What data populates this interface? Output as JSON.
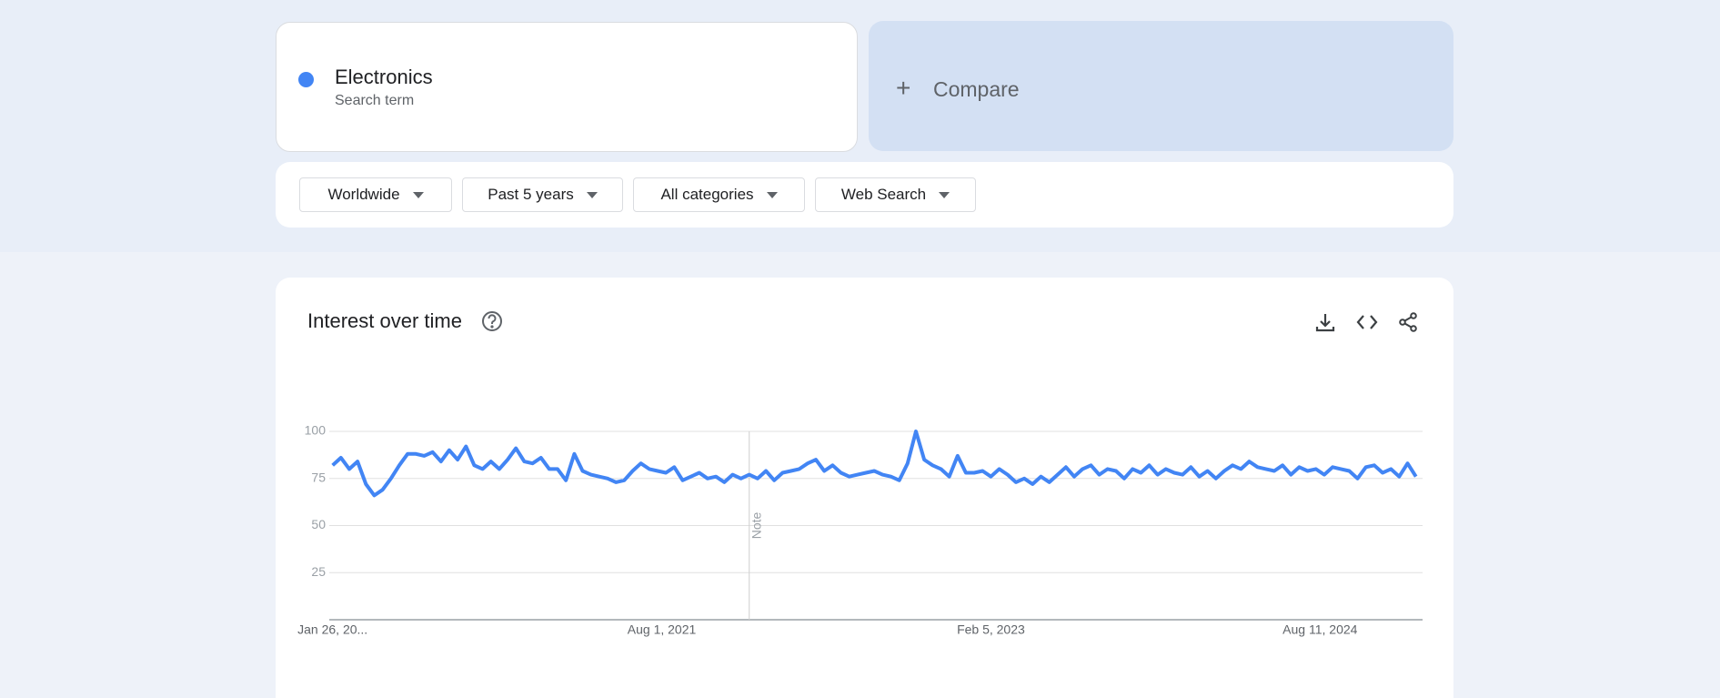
{
  "search": {
    "term": "Electronics",
    "subtitle": "Search term",
    "color": "#4285f4"
  },
  "compare": {
    "label": "Compare"
  },
  "filters": [
    "Worldwide",
    "Past 5 years",
    "All categories",
    "Web Search"
  ],
  "chart_data": {
    "type": "line",
    "title": "Interest over time",
    "color": "#4285f4",
    "values": [
      82,
      86,
      80,
      84,
      72,
      66,
      69,
      75,
      82,
      88,
      88,
      87,
      89,
      84,
      90,
      85,
      92,
      82,
      80,
      84,
      80,
      85,
      91,
      84,
      83,
      86,
      80,
      80,
      74,
      88,
      79,
      77,
      76,
      75,
      73,
      74,
      79,
      83,
      80,
      79,
      78,
      81,
      74,
      76,
      78,
      75,
      76,
      73,
      77,
      75,
      77,
      75,
      79,
      74,
      78,
      79,
      80,
      83,
      85,
      79,
      82,
      78,
      76,
      77,
      78,
      79,
      77,
      76,
      74,
      83,
      100,
      85,
      82,
      80,
      76,
      87,
      78,
      78,
      79,
      76,
      80,
      77,
      73,
      75,
      72,
      76,
      73,
      77,
      81,
      76,
      80,
      82,
      77,
      80,
      79,
      75,
      80,
      78,
      82,
      77,
      80,
      78,
      77,
      81,
      76,
      79,
      75,
      79,
      82,
      80,
      84,
      81,
      80,
      79,
      82,
      77,
      81,
      79,
      80,
      77,
      81,
      80,
      79,
      75,
      81,
      82,
      78,
      80,
      76,
      83,
      76
    ],
    "xlim": [
      -0.4,
      130.8
    ],
    "xticks": [
      {
        "value": 0,
        "label": "Jan 26, 20..."
      },
      {
        "value": 39.5,
        "label": "Aug 1, 2021"
      },
      {
        "value": 79,
        "label": "Feb 5, 2023"
      },
      {
        "value": 118.5,
        "label": "Aug 11, 2024"
      }
    ],
    "ylim": [
      0,
      100
    ],
    "yticks": [
      25,
      50,
      75,
      100
    ],
    "grid": true,
    "annotation": {
      "x": 50,
      "label": "Note"
    }
  }
}
